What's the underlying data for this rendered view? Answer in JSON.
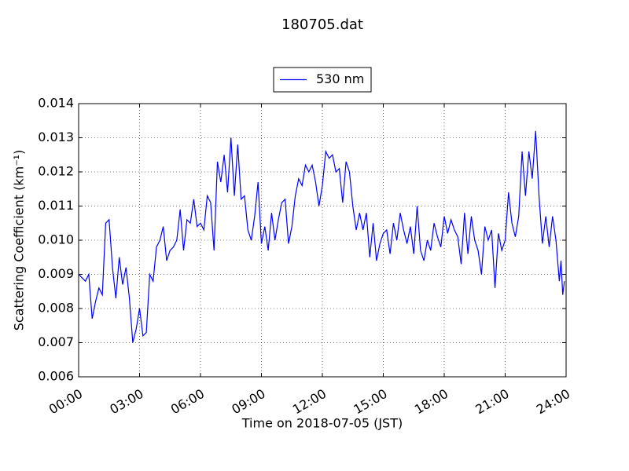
{
  "chart_data": {
    "type": "line",
    "title": "180705.dat",
    "xlabel": "Time on 2018-07-05 (JST)",
    "ylabel": "Scattering Coefficient (km⁻¹)",
    "x": [
      "00:00",
      "00:10",
      "00:20",
      "00:30",
      "00:40",
      "00:50",
      "01:00",
      "01:10",
      "01:20",
      "01:30",
      "01:40",
      "01:50",
      "02:00",
      "02:10",
      "02:20",
      "02:30",
      "02:40",
      "02:50",
      "03:00",
      "03:10",
      "03:20",
      "03:30",
      "03:40",
      "03:50",
      "04:00",
      "04:10",
      "04:20",
      "04:30",
      "04:40",
      "04:50",
      "05:00",
      "05:10",
      "05:20",
      "05:30",
      "05:40",
      "05:50",
      "06:00",
      "06:10",
      "06:20",
      "06:30",
      "06:40",
      "06:50",
      "07:00",
      "07:10",
      "07:20",
      "07:30",
      "07:40",
      "07:50",
      "08:00",
      "08:10",
      "08:20",
      "08:30",
      "08:40",
      "08:50",
      "09:00",
      "09:10",
      "09:20",
      "09:30",
      "09:40",
      "09:50",
      "10:00",
      "10:10",
      "10:20",
      "10:30",
      "10:40",
      "10:50",
      "11:00",
      "11:10",
      "11:20",
      "11:30",
      "11:40",
      "11:50",
      "12:00",
      "12:10",
      "12:20",
      "12:30",
      "12:40",
      "12:50",
      "13:00",
      "13:10",
      "13:20",
      "13:30",
      "13:40",
      "13:50",
      "14:00",
      "14:10",
      "14:20",
      "14:30",
      "14:40",
      "14:50",
      "15:00",
      "15:10",
      "15:20",
      "15:30",
      "15:40",
      "15:50",
      "16:00",
      "16:10",
      "16:20",
      "16:30",
      "16:40",
      "16:50",
      "17:00",
      "17:10",
      "17:20",
      "17:30",
      "17:40",
      "17:50",
      "18:00",
      "18:10",
      "18:20",
      "18:30",
      "18:40",
      "18:50",
      "19:00",
      "19:10",
      "19:20",
      "19:30",
      "19:40",
      "19:50",
      "20:00",
      "20:10",
      "20:20",
      "20:30",
      "20:40",
      "20:50",
      "21:00",
      "21:10",
      "21:20",
      "21:30",
      "21:40",
      "21:50",
      "22:00",
      "22:10",
      "22:20",
      "22:30",
      "22:40",
      "22:50",
      "23:00",
      "23:10",
      "23:20",
      "23:30",
      "23:40",
      "23:45",
      "23:50",
      "23:55"
    ],
    "series": [
      {
        "name": "530 nm",
        "color": "#0000ff",
        "values": [
          0.009,
          0.0089,
          0.0088,
          0.009,
          0.0077,
          0.0082,
          0.0086,
          0.0084,
          0.0105,
          0.0106,
          0.0092,
          0.0083,
          0.0095,
          0.0087,
          0.0092,
          0.0083,
          0.007,
          0.0074,
          0.008,
          0.0072,
          0.0073,
          0.009,
          0.0088,
          0.0098,
          0.01,
          0.0104,
          0.0094,
          0.0097,
          0.0098,
          0.01,
          0.0109,
          0.0097,
          0.0106,
          0.0105,
          0.0112,
          0.0104,
          0.0105,
          0.0103,
          0.0113,
          0.0111,
          0.0097,
          0.0123,
          0.0117,
          0.0125,
          0.0114,
          0.013,
          0.0113,
          0.0128,
          0.0112,
          0.0113,
          0.0103,
          0.01,
          0.0107,
          0.0117,
          0.0099,
          0.0104,
          0.0097,
          0.0108,
          0.01,
          0.0106,
          0.0111,
          0.0112,
          0.0099,
          0.0104,
          0.0113,
          0.0118,
          0.0116,
          0.0122,
          0.012,
          0.0122,
          0.0117,
          0.011,
          0.0116,
          0.0126,
          0.0124,
          0.0125,
          0.012,
          0.0121,
          0.0111,
          0.0123,
          0.012,
          0.011,
          0.0103,
          0.0108,
          0.0103,
          0.0108,
          0.0095,
          0.0105,
          0.0094,
          0.0099,
          0.0102,
          0.0103,
          0.0096,
          0.0105,
          0.01,
          0.0108,
          0.0103,
          0.0099,
          0.0104,
          0.0096,
          0.011,
          0.0097,
          0.0094,
          0.01,
          0.0097,
          0.0105,
          0.0101,
          0.0098,
          0.0107,
          0.0102,
          0.0106,
          0.0103,
          0.0101,
          0.0093,
          0.0108,
          0.0096,
          0.0107,
          0.01,
          0.0097,
          0.009,
          0.0104,
          0.01,
          0.0103,
          0.0086,
          0.0102,
          0.0097,
          0.01,
          0.0114,
          0.0105,
          0.0101,
          0.0107,
          0.0126,
          0.0113,
          0.0126,
          0.0118,
          0.0132,
          0.0113,
          0.0099,
          0.0107,
          0.0098,
          0.0107,
          0.01,
          0.0088,
          0.0094,
          0.0084,
          0.0088
        ]
      }
    ],
    "xlim": [
      "00:00",
      "24:00"
    ],
    "xticks": [
      "00:00",
      "03:00",
      "06:00",
      "09:00",
      "12:00",
      "15:00",
      "18:00",
      "21:00",
      "24:00"
    ],
    "ylim": [
      0.006,
      0.014
    ],
    "yticks": [
      0.006,
      0.007,
      0.008,
      0.009,
      {
        "value": 0.01,
        "label": "0.010"
      },
      0.011,
      0.012,
      0.013,
      0.014
    ],
    "grid": true,
    "legend": "top"
  }
}
